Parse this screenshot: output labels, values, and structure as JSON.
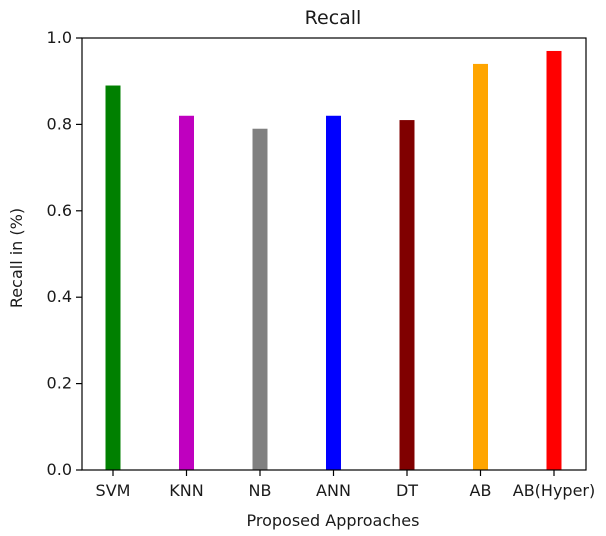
{
  "chart_data": {
    "type": "bar",
    "title": "Recall",
    "xlabel": "Proposed Approaches",
    "ylabel": "Recall in (%)",
    "categories": [
      "SVM",
      "KNN",
      "NB",
      "ANN",
      "DT",
      "AB",
      "AB(Hyper)"
    ],
    "values": [
      0.89,
      0.82,
      0.79,
      0.82,
      0.81,
      0.94,
      0.97
    ],
    "colors": [
      "#008000",
      "#bf00bf",
      "#808080",
      "#0000ff",
      "#800000",
      "#ffa500",
      "#ff0000"
    ],
    "ylim": [
      0,
      1.0
    ],
    "yticks": [
      "0.0",
      "0.2",
      "0.4",
      "0.6",
      "0.8",
      "1.0"
    ],
    "grid": false,
    "legend": "none"
  }
}
